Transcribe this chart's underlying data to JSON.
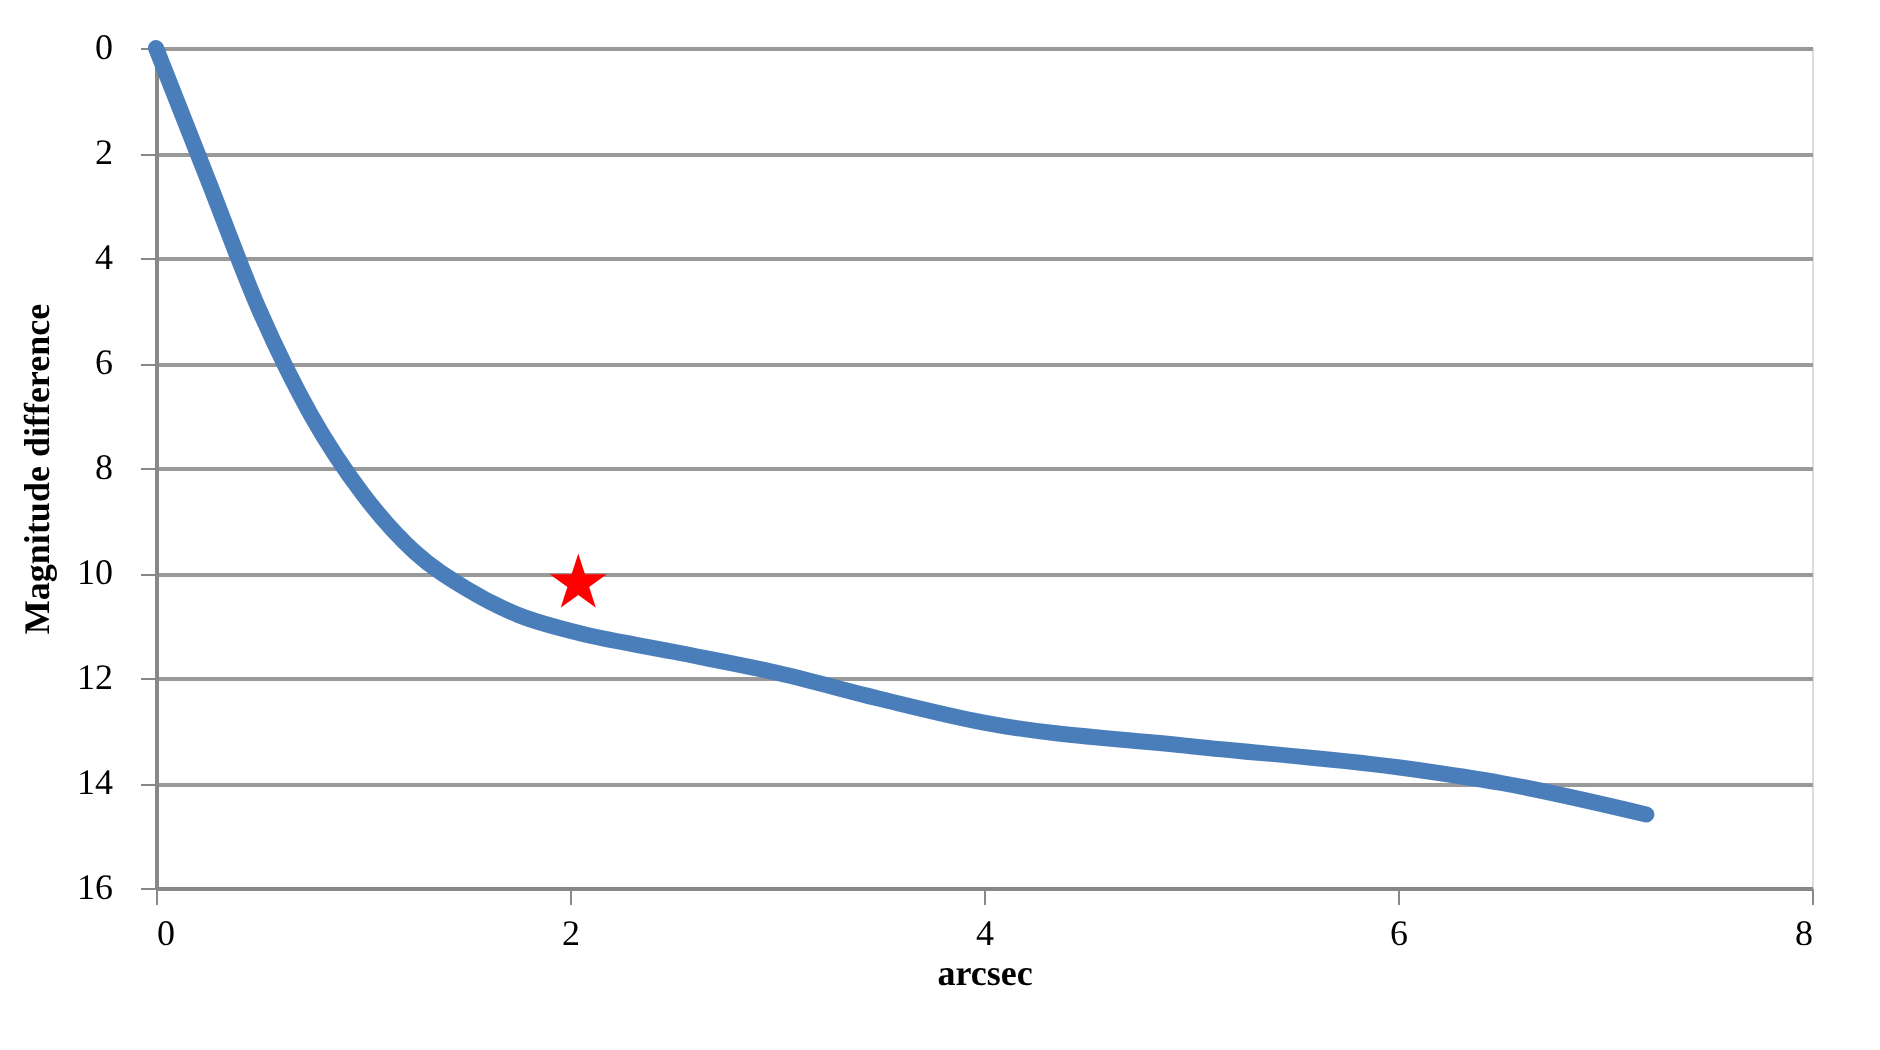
{
  "chart_data": {
    "type": "line",
    "xlabel": "arcsec",
    "ylabel": "Magnitude  difference",
    "xlim": [
      0,
      8
    ],
    "xticks": [
      0,
      2,
      4,
      6,
      8
    ],
    "ylim": [
      16,
      0
    ],
    "yticks": [
      0,
      2,
      4,
      6,
      8,
      10,
      12,
      14,
      16
    ],
    "grid": "y",
    "series": [
      {
        "color": "#4a7ebb",
        "marker": "none",
        "line_style": "solid",
        "x": [
          0,
          0.25,
          0.5,
          0.75,
          1.0,
          1.25,
          1.5,
          1.75,
          2.0,
          2.5,
          3.0,
          3.5,
          4.0,
          5.0,
          6.0,
          6.5,
          7.2
        ],
        "values": [
          0,
          2.5,
          5.0,
          7.0,
          8.5,
          9.6,
          10.3,
          10.8,
          11.1,
          11.5,
          11.9,
          12.4,
          12.85,
          13.3,
          13.7,
          14.0,
          14.6
        ]
      },
      {
        "type": "scatter",
        "color": "#ff0000",
        "marker": "star",
        "x": [
          2.04
        ],
        "values": [
          10.2
        ]
      }
    ]
  }
}
